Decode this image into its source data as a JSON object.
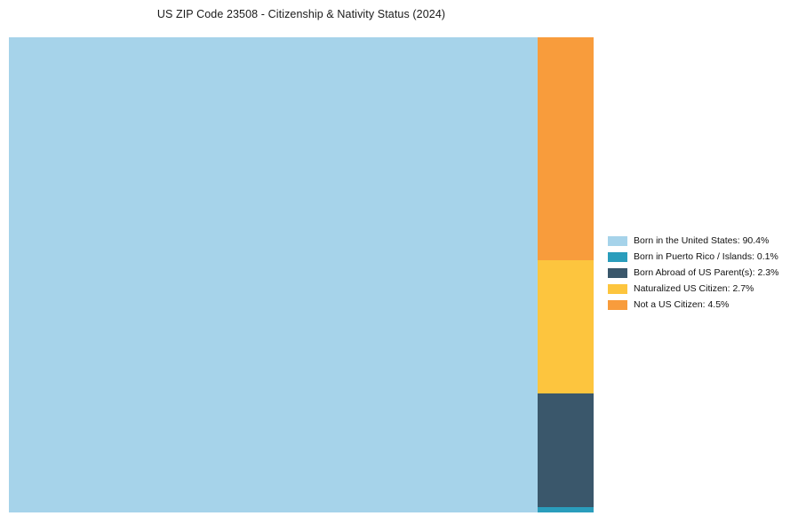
{
  "page": {
    "background": "#FFFFFF"
  },
  "chart_data": {
    "type": "treemap",
    "title": "US ZIP Code 23508 - Citizenship & Nativity Status (2024)",
    "unit": "%",
    "legend_position": "right",
    "layout": "largest category fills left block, remaining categories stacked descending in right column",
    "items": [
      {
        "id": "born-in-the-united-states",
        "label": "Born in the United States",
        "value": 90.4,
        "color": "#A6D3EA"
      },
      {
        "id": "born-in-puerto-rico-islands",
        "label": "Born in Puerto Rico / Islands",
        "value": 0.1,
        "color": "#2A9DBC"
      },
      {
        "id": "born-abroad-of-us-parents",
        "label": "Born Abroad of US Parent(s)",
        "value": 2.3,
        "color": "#3A576B"
      },
      {
        "id": "naturalized-us-citizen",
        "label": "Naturalized US Citizen",
        "value": 2.7,
        "color": "#FDC53E"
      },
      {
        "id": "not-a-us-citizen",
        "label": "Not a US Citizen",
        "value": 4.5,
        "color": "#F89C3C"
      }
    ]
  }
}
